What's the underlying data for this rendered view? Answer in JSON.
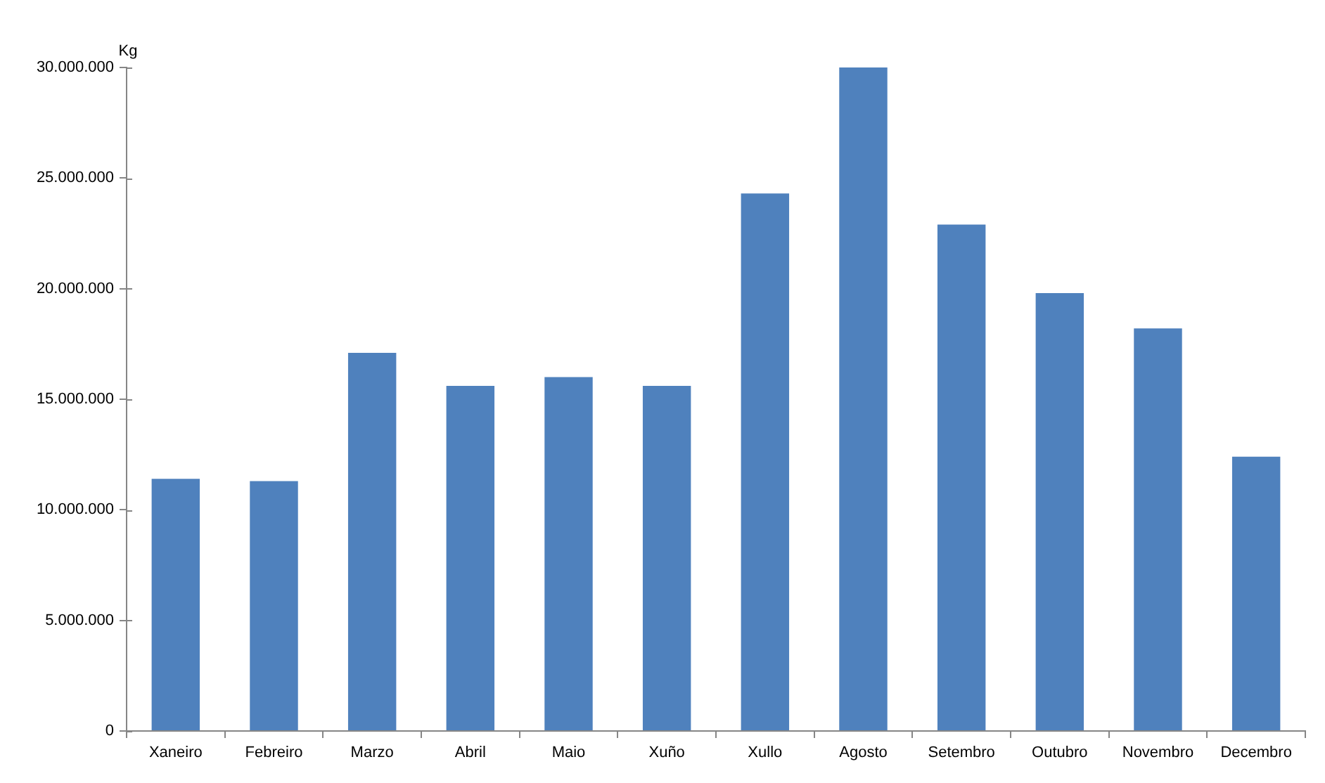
{
  "chart_data": {
    "type": "bar",
    "ylabel": "Kg",
    "categories": [
      "Xaneiro",
      "Febreiro",
      "Marzo",
      "Abril",
      "Maio",
      "Xuño",
      "Xullo",
      "Agosto",
      "Setembro",
      "Outubro",
      "Novembro",
      "Decembro"
    ],
    "values": [
      11400000,
      11300000,
      17100000,
      15600000,
      16000000,
      15600000,
      24300000,
      30000000,
      22900000,
      19800000,
      18200000,
      12400000
    ],
    "color": "#4f81bd",
    "ylim": [
      0,
      30000000
    ],
    "yticks": [
      {
        "value": 0,
        "label": "0"
      },
      {
        "value": 5000000,
        "label": "5.000.000"
      },
      {
        "value": 10000000,
        "label": "10.000.000"
      },
      {
        "value": 15000000,
        "label": "15.000.000"
      },
      {
        "value": 20000000,
        "label": "20.000.000"
      },
      {
        "value": 25000000,
        "label": "25.000.000"
      },
      {
        "value": 30000000,
        "label": "30.000.000"
      }
    ]
  }
}
